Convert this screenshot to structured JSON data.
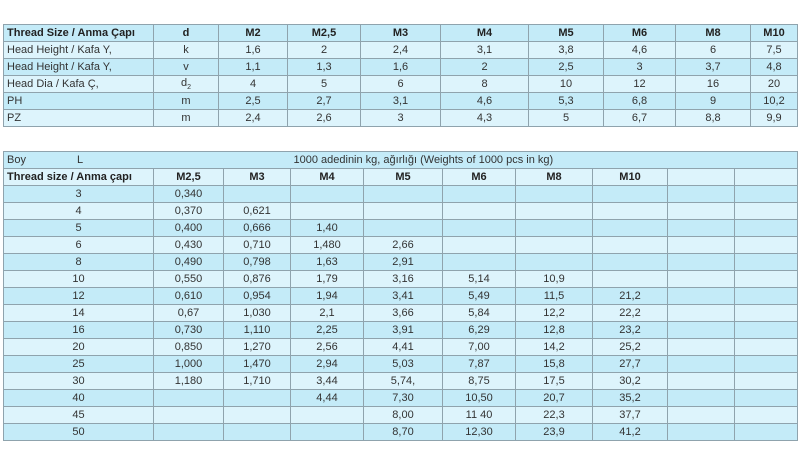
{
  "dimensions_table": {
    "header": [
      "Thread Size / Anma Çapı",
      "d",
      "M2",
      "M2,5",
      "M3",
      "M4",
      "M5",
      "M6",
      "M8",
      "M10"
    ],
    "rows": [
      {
        "label": "Head Height / Kafa Y,",
        "symbol": "k",
        "sub": "",
        "values": [
          "1,6",
          "2",
          "2,4",
          "3,1",
          "3,8",
          "4,6",
          "6",
          "7,5"
        ]
      },
      {
        "label": "Head Height / Kafa Y,",
        "symbol": "v",
        "sub": "",
        "values": [
          "1,1",
          "1,3",
          "1,6",
          "2",
          "2,5",
          "3",
          "3,7",
          "4,8"
        ]
      },
      {
        "label": "Head Dia / Kafa Ç,",
        "symbol": "d",
        "sub": "2",
        "values": [
          "4",
          "5",
          "6",
          "8",
          "10",
          "12",
          "16",
          "20"
        ]
      },
      {
        "label": "PH",
        "symbol": "m",
        "sub": "",
        "values": [
          "2,5",
          "2,7",
          "3,1",
          "4,6",
          "5,3",
          "6,8",
          "9",
          "10,2"
        ]
      },
      {
        "label": "PZ",
        "symbol": "m",
        "sub": "",
        "values": [
          "2,4",
          "2,6",
          "3",
          "4,3",
          "5",
          "6,7",
          "8,8",
          "9,9"
        ]
      }
    ]
  },
  "weights_table": {
    "boy_label": "Boy",
    "length_symbol": "L",
    "title": "1000 adedinin kg, ağırlığı (Weights of 1000 pcs in kg)",
    "header": [
      "Thread size / Anma çapı",
      "M2,5",
      "M3",
      "M4",
      "M5",
      "M6",
      "M8",
      "M10",
      "",
      ""
    ],
    "rows": [
      {
        "length": "3",
        "values": [
          "0,340",
          "",
          "",
          "",
          "",
          "",
          "",
          "",
          ""
        ]
      },
      {
        "length": "4",
        "values": [
          "0,370",
          "0,621",
          "",
          "",
          "",
          "",
          "",
          "",
          ""
        ]
      },
      {
        "length": "5",
        "values": [
          "0,400",
          "0,666",
          "1,40",
          "",
          "",
          "",
          "",
          "",
          ""
        ]
      },
      {
        "length": "6",
        "values": [
          "0,430",
          "0,710",
          "1,480",
          "2,66",
          "",
          "",
          "",
          "",
          ""
        ]
      },
      {
        "length": "8",
        "values": [
          "0,490",
          "0,798",
          "1,63",
          "2,91",
          "",
          "",
          "",
          "",
          ""
        ]
      },
      {
        "length": "10",
        "values": [
          "0,550",
          "0,876",
          "1,79",
          "3,16",
          "5,14",
          "10,9",
          "",
          "",
          ""
        ]
      },
      {
        "length": "12",
        "values": [
          "0,610",
          "0,954",
          "1,94",
          "3,41",
          "5,49",
          "11,5",
          "21,2",
          "",
          ""
        ]
      },
      {
        "length": "14",
        "values": [
          "0,67",
          "1,030",
          "2,1",
          "3,66",
          "5,84",
          "12,2",
          "22,2",
          "",
          ""
        ]
      },
      {
        "length": "16",
        "values": [
          "0,730",
          "1,110",
          "2,25",
          "3,91",
          "6,29",
          "12,8",
          "23,2",
          "",
          ""
        ]
      },
      {
        "length": "20",
        "values": [
          "0,850",
          "1,270",
          "2,56",
          "4,41",
          "7,00",
          "14,2",
          "25,2",
          "",
          ""
        ]
      },
      {
        "length": "25",
        "values": [
          "1,000",
          "1,470",
          "2,94",
          "5,03",
          "7,87",
          "15,8",
          "27,7",
          "",
          ""
        ]
      },
      {
        "length": "30",
        "values": [
          "1,180",
          "1,710",
          "3,44",
          "5,74,",
          "8,75",
          "17,5",
          "30,2",
          "",
          ""
        ]
      },
      {
        "length": "40",
        "values": [
          "",
          "",
          "4,44",
          "7,30",
          "10,50",
          "20,7",
          "35,2",
          "",
          ""
        ]
      },
      {
        "length": "45",
        "values": [
          "",
          "",
          "",
          "8,00",
          "11 40",
          "22,3",
          "37,7",
          "",
          ""
        ]
      },
      {
        "length": "50",
        "values": [
          "",
          "",
          "",
          "8,70",
          "12,30",
          "23,9",
          "41,2",
          "",
          ""
        ]
      }
    ]
  },
  "colors": {
    "row_dark": "#c4ebf8",
    "row_light": "#ddf4fc",
    "border": "#8fa3ad"
  }
}
